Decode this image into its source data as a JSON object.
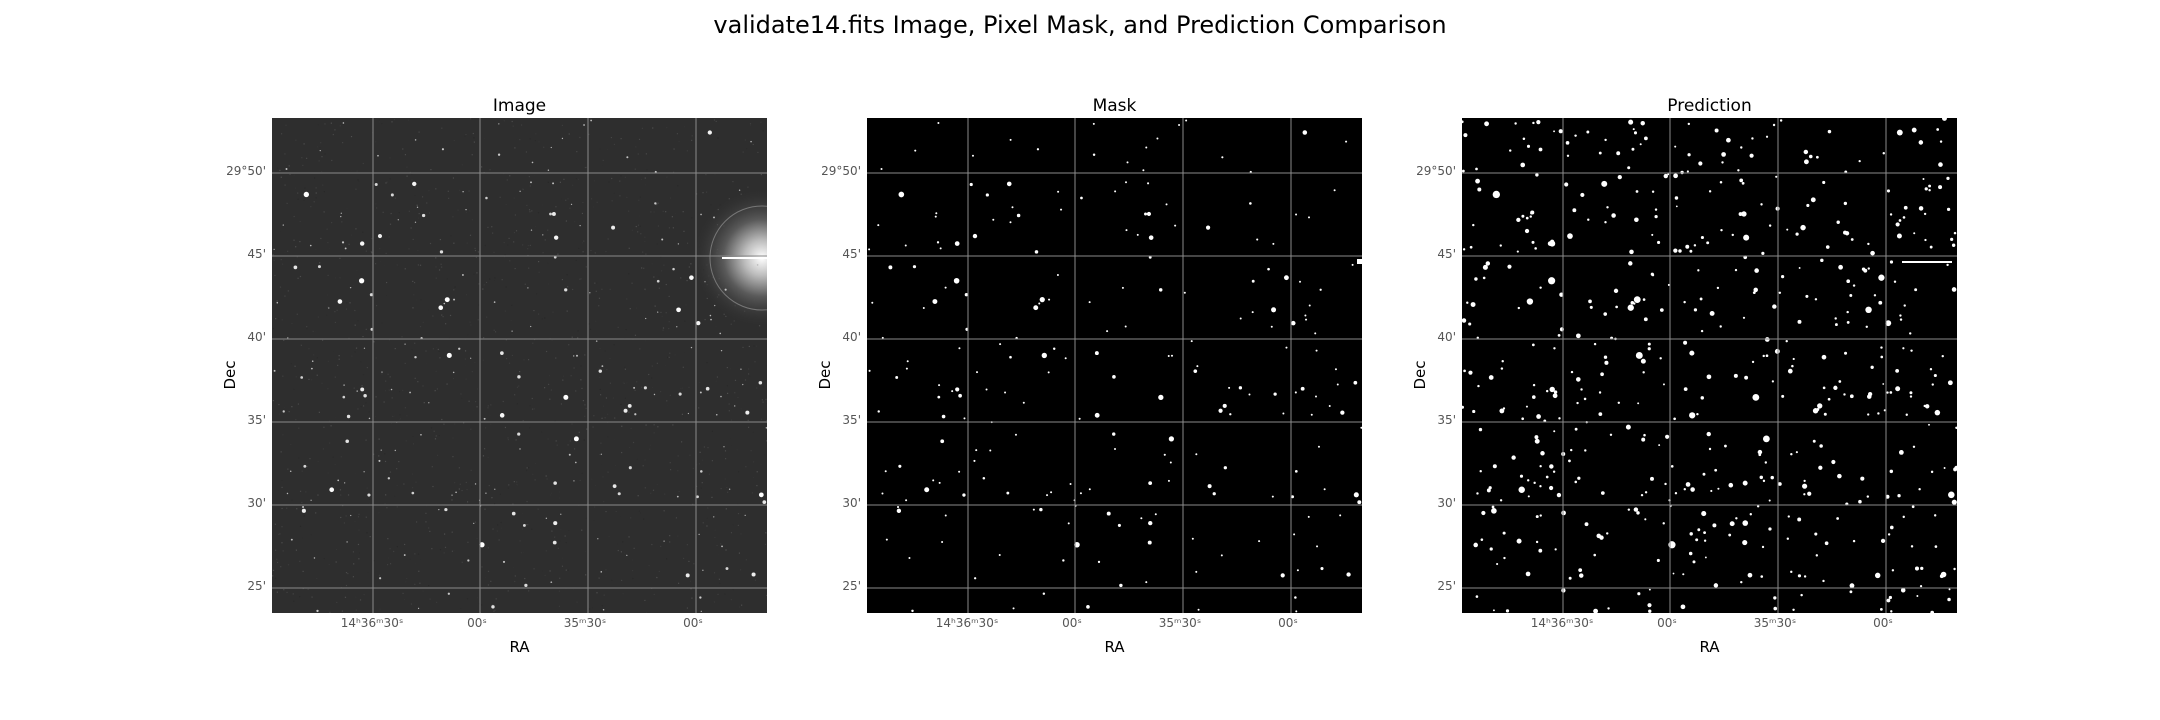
{
  "figure": {
    "title": "validate14.fits Image, Pixel Mask, and Prediction Comparison"
  },
  "axis_labels": {
    "x": "RA",
    "y": "Dec"
  },
  "dec_ticks": [
    "29°50'",
    "45'",
    "40'",
    "35'",
    "30'",
    "25'"
  ],
  "ra_ticks": [
    "14ʰ36ᵐ30ˢ",
    "00ˢ",
    "35ᵐ30ˢ",
    "00ˢ"
  ],
  "panels": [
    {
      "id": "image",
      "title": "Image",
      "background": "#2e2e2e"
    },
    {
      "id": "mask",
      "title": "Mask",
      "background": "#000000"
    },
    {
      "id": "prediction",
      "title": "Prediction",
      "background": "#000000"
    }
  ],
  "colors": {
    "grid": "#8a8a8a",
    "source": "#ffffff",
    "halo": "#dcdcdc"
  }
}
